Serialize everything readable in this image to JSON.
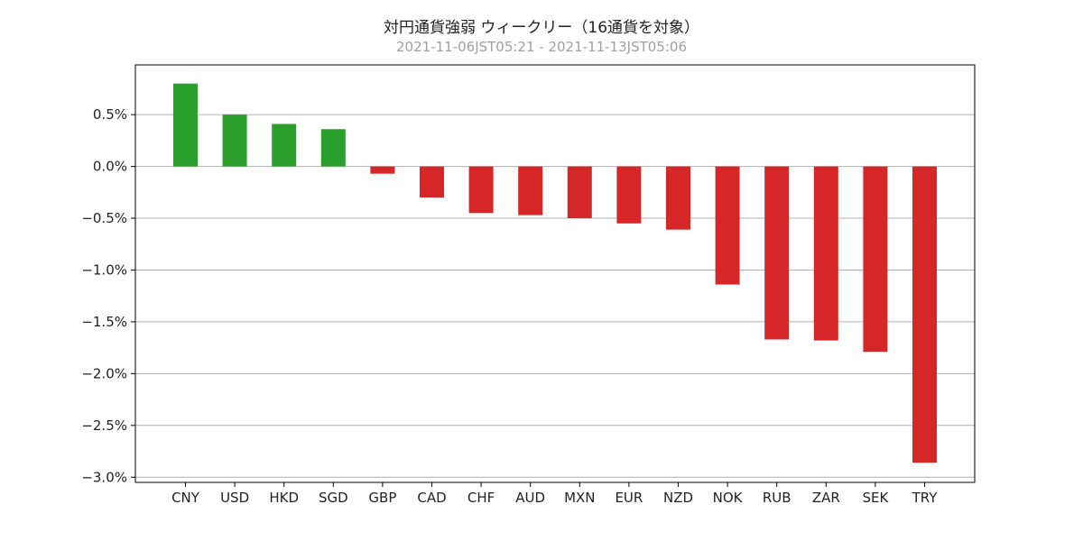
{
  "chart_data": {
    "type": "bar",
    "title": "対円通貨強弱 ウィークリー（16通貨を対象）",
    "subtitle": "2021-11-06JST05:21 - 2021-11-13JST05:06",
    "xlabel": "",
    "ylabel": "",
    "categories": [
      "CNY",
      "USD",
      "HKD",
      "SGD",
      "GBP",
      "CAD",
      "CHF",
      "AUD",
      "MXN",
      "EUR",
      "NZD",
      "NOK",
      "RUB",
      "ZAR",
      "SEK",
      "TRY"
    ],
    "values": [
      0.8,
      0.5,
      0.41,
      0.36,
      -0.07,
      -0.3,
      -0.45,
      -0.47,
      -0.5,
      -0.55,
      -0.61,
      -1.14,
      -1.67,
      -1.68,
      -1.79,
      -2.86
    ],
    "ylim": [
      -3.05,
      0.98
    ],
    "yticks": [
      0.5,
      0.0,
      -0.5,
      -1.0,
      -1.5,
      -2.0,
      -2.5,
      -3.0
    ],
    "ytick_labels": [
      "0.5%",
      "0.0%",
      "−0.5%",
      "−1.0%",
      "−1.5%",
      "−2.0%",
      "−2.5%",
      "−3.0%"
    ],
    "grid": "horizontal",
    "colors": {
      "positive": "#2ca02c",
      "negative": "#d62728",
      "grid": "#b0b0b0",
      "axis": "#000000"
    }
  }
}
